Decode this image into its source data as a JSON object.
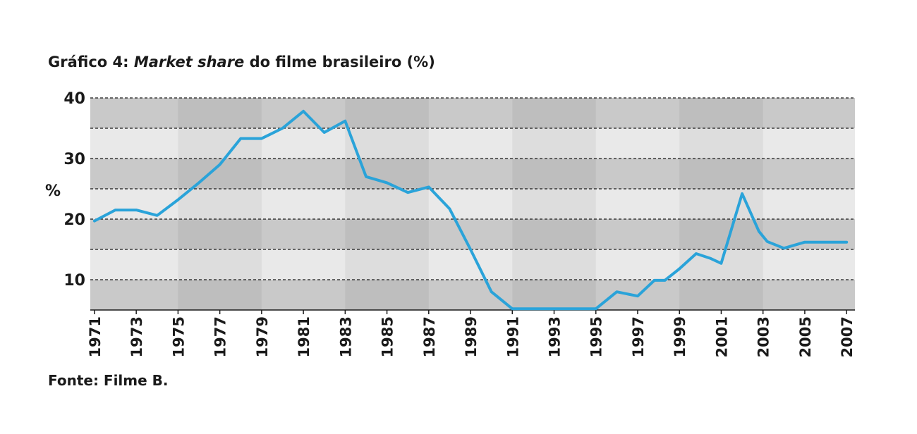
{
  "title": {
    "prefix": "Gráfico 4: ",
    "italic": "Market share",
    "suffix": " do filme brasileiro (%)"
  },
  "source": "Fonte: Filme B.",
  "colors": {
    "line": "#2aa3d9",
    "band_dark": "#c9c9c9",
    "band_light": "#e9e9e9",
    "column_shade": "#000000",
    "gridline": "#1a1a1a"
  },
  "chart_data": {
    "type": "line",
    "ylabel": "%",
    "xlabel": "",
    "ylim": [
      5,
      40
    ],
    "yticks": [
      10,
      20,
      30,
      40
    ],
    "xlim": [
      1970.8,
      2007.4
    ],
    "xticks": [
      1971,
      1973,
      1975,
      1977,
      1979,
      1981,
      1983,
      1985,
      1987,
      1989,
      1991,
      1993,
      1995,
      1997,
      1999,
      2001,
      2003,
      2005,
      2007
    ],
    "grid": "dashed horizontal lines every 5, alternating grey bands",
    "series": [
      {
        "x": [
          1971,
          1972,
          1973,
          1974,
          1975,
          1976,
          1977,
          1978,
          1979,
          1980,
          1981,
          1982,
          1983,
          1984,
          1985,
          1986,
          1987,
          1988,
          1989,
          1990,
          1991,
          1992,
          1993,
          1994,
          1995,
          1996,
          1997,
          1997.8,
          1998.3,
          1999,
          1999.8,
          2000.5,
          2001,
          2002,
          2002.8,
          2003.2,
          2004,
          2005,
          2006,
          2007
        ],
        "values": [
          19.7,
          21.5,
          21.5,
          20.6,
          23.2,
          26,
          29,
          33.3,
          33.3,
          35,
          37.8,
          34.3,
          36.2,
          27,
          26,
          24.4,
          25.3,
          21.7,
          15,
          8,
          5.2,
          5.2,
          5.2,
          5.2,
          5.2,
          8,
          7.3,
          9.9,
          9.9,
          11.8,
          14.3,
          13.5,
          12.7,
          24.2,
          18,
          16.3,
          15.2,
          16.2,
          16.2,
          16.2
        ]
      }
    ]
  }
}
